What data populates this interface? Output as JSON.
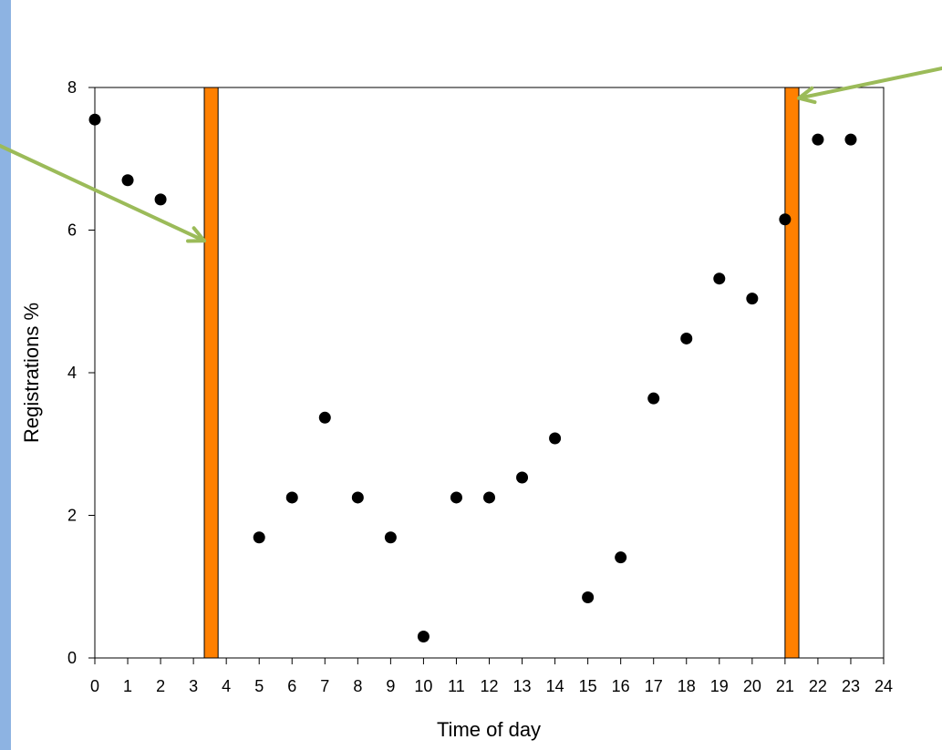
{
  "chart_data": {
    "type": "scatter",
    "title": "",
    "xlabel": "Time of day",
    "ylabel": "Registrations %",
    "xlim": [
      0,
      24
    ],
    "ylim": [
      0,
      8
    ],
    "x_ticks": [
      0,
      1,
      2,
      3,
      4,
      5,
      6,
      7,
      8,
      9,
      10,
      11,
      12,
      13,
      14,
      15,
      16,
      17,
      18,
      19,
      20,
      21,
      22,
      23,
      24
    ],
    "y_ticks": [
      0,
      2,
      4,
      6,
      8
    ],
    "grid": false,
    "legend": "none",
    "x": [
      0,
      1,
      2,
      5,
      6,
      7,
      8,
      9,
      10,
      11,
      12,
      13,
      14,
      15,
      16,
      17,
      18,
      19,
      20,
      21,
      22,
      23
    ],
    "y": [
      7.55,
      6.7,
      6.43,
      1.69,
      2.25,
      3.37,
      2.25,
      1.69,
      0.3,
      2.25,
      2.25,
      2.53,
      3.08,
      0.85,
      1.41,
      3.64,
      4.48,
      5.32,
      5.04,
      6.15,
      7.27,
      7.27
    ],
    "point_color": "#000000",
    "bands": [
      {
        "x_start": 3.33,
        "x_end": 3.75,
        "color": "#ff8000"
      },
      {
        "x_start": 21.0,
        "x_end": 21.42,
        "color": "#ff8000"
      }
    ],
    "arrows": [
      {
        "to": [
          3.33,
          5.85
        ],
        "direction": "from-upper-left",
        "color": "#9bbb59"
      },
      {
        "to": [
          21.42,
          7.85
        ],
        "direction": "from-upper-right",
        "color": "#9bbb59"
      }
    ]
  },
  "colors": {
    "page_background": "#8db3e2",
    "panel_background": "#ffffff"
  }
}
